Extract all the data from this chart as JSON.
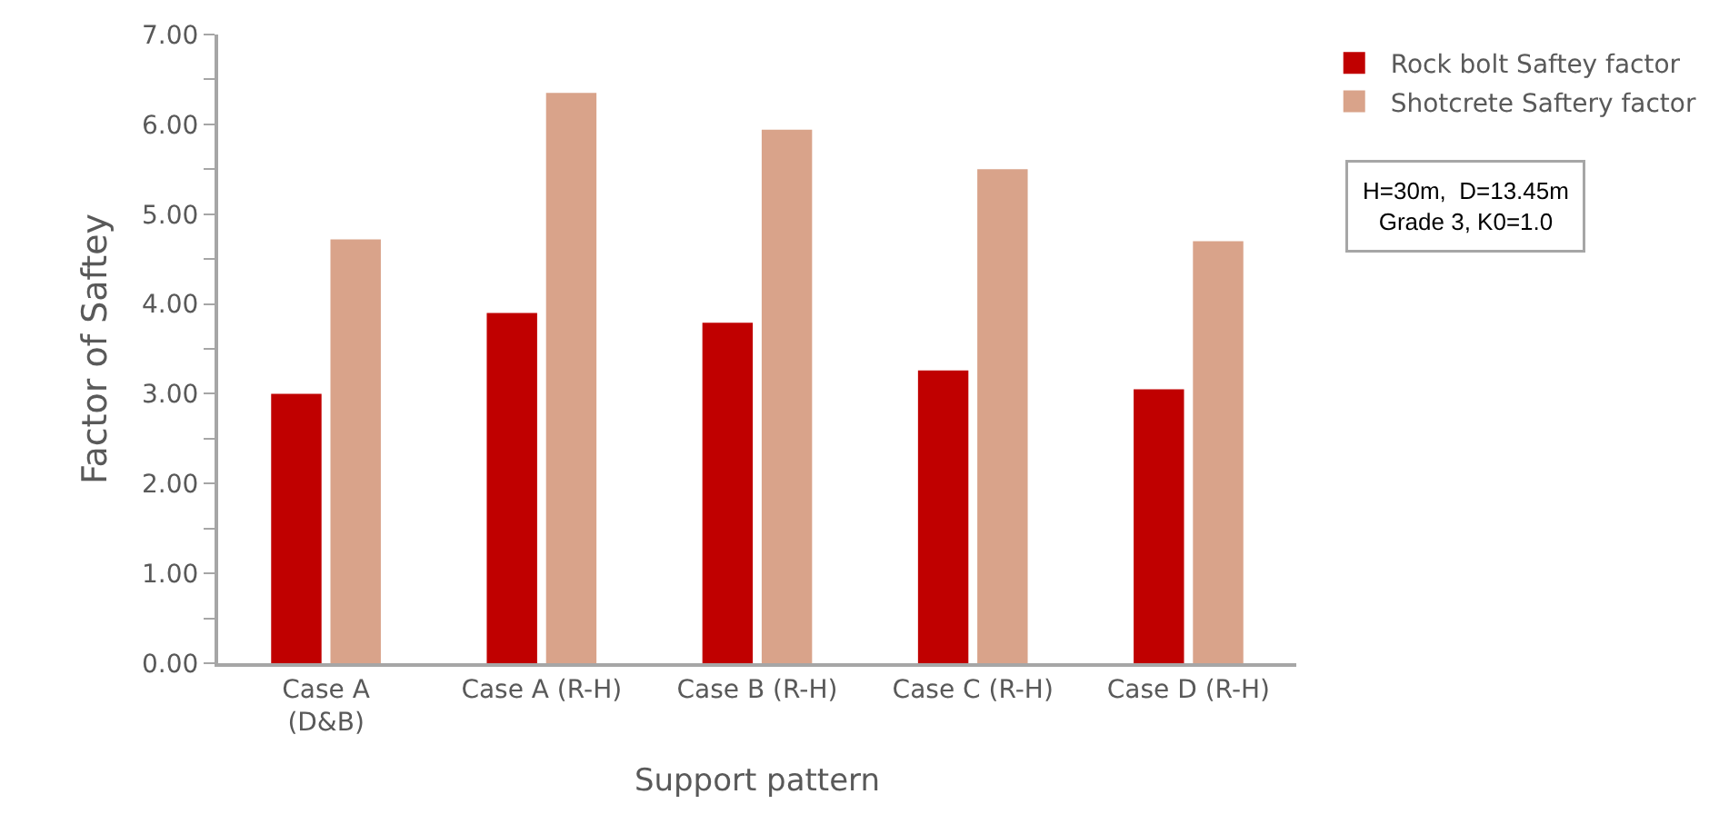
{
  "chart_data": {
    "type": "bar",
    "xlabel": "Support pattern",
    "ylabel": "Factor of Saftey",
    "categories": [
      "Case A\n(D&B)",
      "Case A (R-H)",
      "Case B (R-H)",
      "Case C (R-H)",
      "Case D (R-H)"
    ],
    "series": [
      {
        "name": "Rock bolt Saftey factor",
        "color": "#c00000",
        "values": [
          3.0,
          3.9,
          3.79,
          3.26,
          3.05
        ]
      },
      {
        "name": "Shotcrete Saftery factor",
        "color": "#d9a38a",
        "values": [
          4.72,
          6.35,
          5.94,
          5.5,
          4.7
        ]
      }
    ],
    "ylim": [
      0,
      7
    ],
    "yticks": [
      {
        "value": 0,
        "label": "0.00"
      },
      {
        "value": 1,
        "label": "1.00"
      },
      {
        "value": 2,
        "label": "2.00"
      },
      {
        "value": 3,
        "label": "3.00"
      },
      {
        "value": 4,
        "label": "4.00"
      },
      {
        "value": 5,
        "label": "5.00"
      },
      {
        "value": 6,
        "label": "6.00"
      },
      {
        "value": 7,
        "label": "7.00"
      }
    ],
    "grid": false,
    "legend": "top right",
    "annotations": [
      "H=30m,  D=13.45m\nGrade 3, K0=1.0"
    ]
  }
}
